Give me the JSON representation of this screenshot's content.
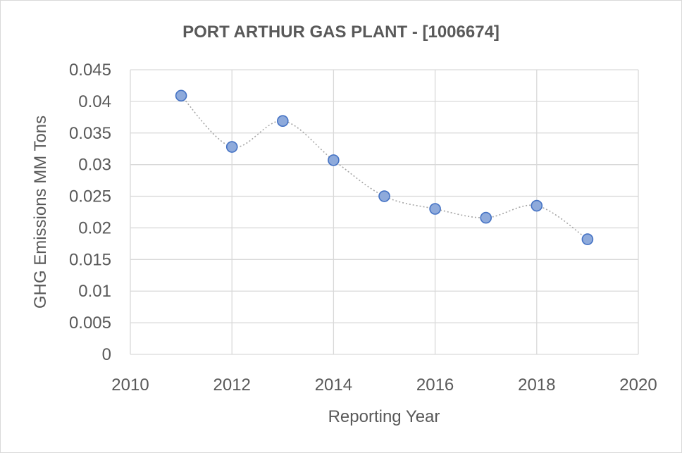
{
  "chart_data": {
    "type": "scatter",
    "title": "PORT ARTHUR GAS PLANT - [1006674]",
    "xlabel": "Reporting Year",
    "ylabel": "GHG Emissions MM Tons",
    "xlim": [
      2010,
      2020
    ],
    "ylim": [
      0,
      0.045
    ],
    "x_ticks": [
      "2010",
      "2012",
      "2014",
      "2016",
      "2018",
      "2020"
    ],
    "y_ticks": [
      "0",
      "0.005",
      "0.01",
      "0.015",
      "0.02",
      "0.025",
      "0.03",
      "0.035",
      "0.04",
      "0.045"
    ],
    "grid": true,
    "line_style": "smoothed dotted",
    "colors": {
      "marker_fill": "#8eaadb",
      "marker_edge": "#4472c4",
      "line": "#a6a6a6",
      "grid": "#d9d9d9",
      "text": "#595959"
    },
    "series": [
      {
        "x": [
          2011,
          2012,
          2013,
          2014,
          2015,
          2016,
          2017,
          2018,
          2019
        ],
        "y": [
          0.0409,
          0.0328,
          0.0369,
          0.0307,
          0.025,
          0.023,
          0.0216,
          0.0235,
          0.0182
        ]
      }
    ]
  }
}
